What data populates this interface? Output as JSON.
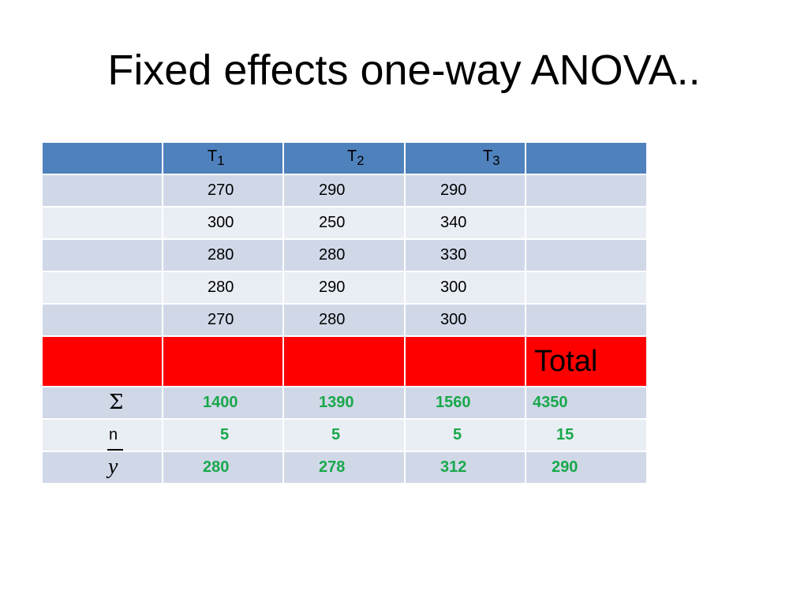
{
  "slide": {
    "title": "Fixed effects one-way ANOVA.."
  },
  "table": {
    "headers": [
      {
        "base": "T",
        "sub": "1"
      },
      {
        "base": "T",
        "sub": "2"
      },
      {
        "base": "T",
        "sub": "3"
      }
    ],
    "rows": [
      [
        "270",
        "290",
        "290"
      ],
      [
        "300",
        "250",
        "340"
      ],
      [
        "280",
        "280",
        "330"
      ],
      [
        "280",
        "290",
        "300"
      ],
      [
        "270",
        "280",
        "300"
      ]
    ],
    "total_label": "Total",
    "sum_row": {
      "symbol": "Σ",
      "values": [
        "1400",
        "1390",
        "1560",
        "4350"
      ]
    },
    "n_row": {
      "symbol": "n",
      "values": [
        "5",
        "5",
        "5",
        "15"
      ]
    },
    "mean_row": {
      "symbol": "y",
      "values": [
        "280",
        "278",
        "312",
        "290"
      ]
    }
  },
  "colors": {
    "header": "#4f81bd",
    "row_dark": "#d0d8e8",
    "row_light": "#e9edf4",
    "total_row": "#ff0000",
    "stat_text": "#19a84a"
  }
}
